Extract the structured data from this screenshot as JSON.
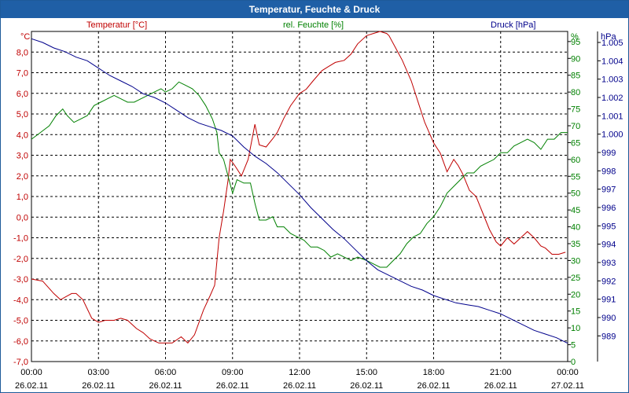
{
  "window": {
    "title": "Temperatur, Feuchte & Druck"
  },
  "colors": {
    "temperature": "#c00000",
    "humidity": "#008000",
    "pressure": "#00008b",
    "grid": "#000000",
    "titlebar": "#1f5fa6"
  },
  "chart_data": {
    "type": "line",
    "title": "Temperatur, Feuchte & Druck",
    "grid": true,
    "x_range_hours": [
      0,
      24
    ],
    "x_ticks": [
      {
        "time": "00:00",
        "date": "26.02.11",
        "hour": 0
      },
      {
        "time": "03:00",
        "date": "26.02.11",
        "hour": 3
      },
      {
        "time": "06:00",
        "date": "26.02.11",
        "hour": 6
      },
      {
        "time": "09:00",
        "date": "26.02.11",
        "hour": 9
      },
      {
        "time": "12:00",
        "date": "26.02.11",
        "hour": 12
      },
      {
        "time": "15:00",
        "date": "26.02.11",
        "hour": 15
      },
      {
        "time": "18:00",
        "date": "26.02.11",
        "hour": 18
      },
      {
        "time": "21:00",
        "date": "26.02.11",
        "hour": 21
      },
      {
        "time": "00:00",
        "date": "27.02.11",
        "hour": 24
      }
    ],
    "axes": {
      "temperature": {
        "unit_label": "°C",
        "series_label": "Temperatur [°C]",
        "ylim": [
          -7,
          9
        ],
        "ticks": [
          "8,0",
          "7,0",
          "6,0",
          "5,0",
          "4,0",
          "3,0",
          "2,0",
          "1,0",
          "0,0",
          "-1,0",
          "-2,0",
          "-3,0",
          "-4,0",
          "-5,0",
          "-6,0",
          "-7,0"
        ]
      },
      "humidity": {
        "unit_label": "%",
        "series_label": "rel. Feuchte [%]",
        "ylim": [
          0,
          98
        ],
        "ticks": [
          "95",
          "90",
          "85",
          "80",
          "75",
          "70",
          "65",
          "60",
          "55",
          "50",
          "45",
          "40",
          "35",
          "30",
          "25",
          "20",
          "15",
          "10",
          "5",
          "0"
        ]
      },
      "pressure": {
        "unit_label": "hPa",
        "series_label": "Druck [hPa]",
        "ylim": [
          987.6,
          1005.6
        ],
        "ticks": [
          "1.005",
          "1.004",
          "1.003",
          "1.002",
          "1.001",
          "1.000",
          "999",
          "998",
          "997",
          "996",
          "995",
          "994",
          "993",
          "992",
          "991",
          "990",
          "989"
        ]
      }
    },
    "series": [
      {
        "name": "Temperatur [°C]",
        "axis": "temperature",
        "x": [
          0,
          0.5,
          1,
          1.3,
          1.8,
          2,
          2.3,
          2.7,
          3,
          3.3,
          3.7,
          4,
          4.3,
          4.7,
          5,
          5.3,
          5.7,
          6,
          6.3,
          6.7,
          7,
          7.3,
          7.7,
          8,
          8.2,
          8.4,
          8.6,
          8.8,
          8.9,
          9.1,
          9.4,
          9.7,
          10,
          10.2,
          10.5,
          10.8,
          11,
          11.3,
          11.6,
          12,
          12.3,
          12.6,
          13,
          13.3,
          13.6,
          14,
          14.3,
          14.6,
          15,
          15.3,
          15.6,
          15.9,
          16,
          16.3,
          16.6,
          17,
          17.3,
          17.6,
          18,
          18.3,
          18.6,
          18.9,
          19.1,
          19.3,
          19.6,
          19.9,
          20.2,
          20.5,
          20.8,
          21,
          21.3,
          21.6,
          21.9,
          22.2,
          22.5,
          22.8,
          23,
          23.3,
          23.6,
          23.9
        ],
        "values": [
          -3.0,
          -3.1,
          -3.7,
          -4.0,
          -3.7,
          -3.7,
          -4.0,
          -4.9,
          -5.1,
          -5.0,
          -5.0,
          -4.9,
          -5.0,
          -5.4,
          -5.6,
          -5.9,
          -6.1,
          -6.1,
          -6.1,
          -5.8,
          -6.1,
          -5.7,
          -4.5,
          -3.8,
          -3.3,
          -1.0,
          0.3,
          1.8,
          2.8,
          2.5,
          2.0,
          2.8,
          4.5,
          3.5,
          3.4,
          3.8,
          4.1,
          4.8,
          5.4,
          6.0,
          6.2,
          6.6,
          7.1,
          7.3,
          7.5,
          7.6,
          7.9,
          8.4,
          8.8,
          8.9,
          9.0,
          8.9,
          8.8,
          8.2,
          7.6,
          6.6,
          5.6,
          4.6,
          3.6,
          3.1,
          2.2,
          2.8,
          2.5,
          2.1,
          1.3,
          1.0,
          0.2,
          -0.6,
          -1.2,
          -1.4,
          -1.0,
          -1.3,
          -1.0,
          -0.7,
          -1.0,
          -1.4,
          -1.5,
          -1.8,
          -1.8,
          -1.7
        ]
      },
      {
        "name": "rel. Feuchte [%]",
        "axis": "humidity",
        "x": [
          0,
          0.4,
          0.8,
          1.1,
          1.4,
          1.6,
          1.9,
          2.2,
          2.5,
          2.8,
          3.1,
          3.4,
          3.7,
          4,
          4.3,
          4.6,
          4.9,
          5.2,
          5.5,
          5.8,
          6,
          6.3,
          6.6,
          6.9,
          7.2,
          7.5,
          7.8,
          8.1,
          8.3,
          8.4,
          8.6,
          8.8,
          9,
          9.2,
          9.5,
          9.8,
          10,
          10.2,
          10.5,
          10.8,
          11,
          11.3,
          11.6,
          11.9,
          12.2,
          12.5,
          12.8,
          13.1,
          13.4,
          13.7,
          14,
          14.3,
          14.6,
          15,
          15.3,
          15.6,
          15.9,
          16.2,
          16.5,
          16.8,
          17.1,
          17.4,
          17.7,
          18,
          18.3,
          18.6,
          18.9,
          19.2,
          19.5,
          19.8,
          20.1,
          20.4,
          20.7,
          21,
          21.3,
          21.6,
          21.9,
          22.2,
          22.5,
          22.8,
          23.1,
          23.4,
          23.7,
          24
        ],
        "values": [
          66,
          68,
          70,
          73,
          75,
          73,
          71,
          72,
          73,
          76,
          77,
          78,
          79,
          78,
          77,
          77,
          78,
          79,
          80,
          81,
          80,
          81,
          83,
          82,
          81,
          79,
          76,
          72,
          68,
          62,
          60,
          55,
          50,
          54,
          53,
          53,
          47,
          42,
          42,
          43,
          40,
          40,
          38,
          37,
          36,
          34,
          34,
          33,
          31,
          32,
          31,
          30,
          31,
          30,
          29,
          28,
          28,
          30,
          32,
          35,
          37,
          38,
          41,
          43,
          46,
          50,
          52,
          54,
          56,
          56,
          58,
          59,
          60,
          62,
          62,
          64,
          65,
          66,
          65,
          63,
          66,
          66,
          68,
          68
        ]
      },
      {
        "name": "Druck [hPa]",
        "axis": "pressure",
        "x": [
          0,
          0.5,
          1,
          1.5,
          2,
          2.5,
          3,
          3.5,
          4,
          4.5,
          5,
          5.5,
          6,
          6.5,
          7,
          7.5,
          8,
          8.5,
          9,
          9.5,
          10,
          10.5,
          11,
          11.5,
          12,
          12.5,
          13,
          13.5,
          14,
          14.5,
          15,
          15.5,
          16,
          16.5,
          17,
          17.5,
          18,
          18.5,
          19,
          19.5,
          20,
          20.5,
          21,
          21.5,
          22,
          22.5,
          23,
          23.5,
          24
        ],
        "values": [
          1005.2,
          1005.0,
          1004.7,
          1004.5,
          1004.2,
          1004.0,
          1003.6,
          1003.2,
          1002.9,
          1002.6,
          1002.2,
          1002.0,
          1001.7,
          1001.3,
          1000.9,
          1000.6,
          1000.4,
          1000.2,
          999.9,
          999.3,
          998.8,
          998.4,
          997.9,
          997.3,
          996.7,
          996.0,
          995.4,
          994.8,
          994.3,
          993.7,
          993.1,
          992.6,
          992.3,
          992.0,
          991.7,
          991.5,
          991.2,
          991.0,
          990.8,
          990.7,
          990.6,
          990.4,
          990.2,
          989.9,
          989.6,
          989.3,
          989.1,
          988.9,
          988.6
        ]
      }
    ]
  }
}
